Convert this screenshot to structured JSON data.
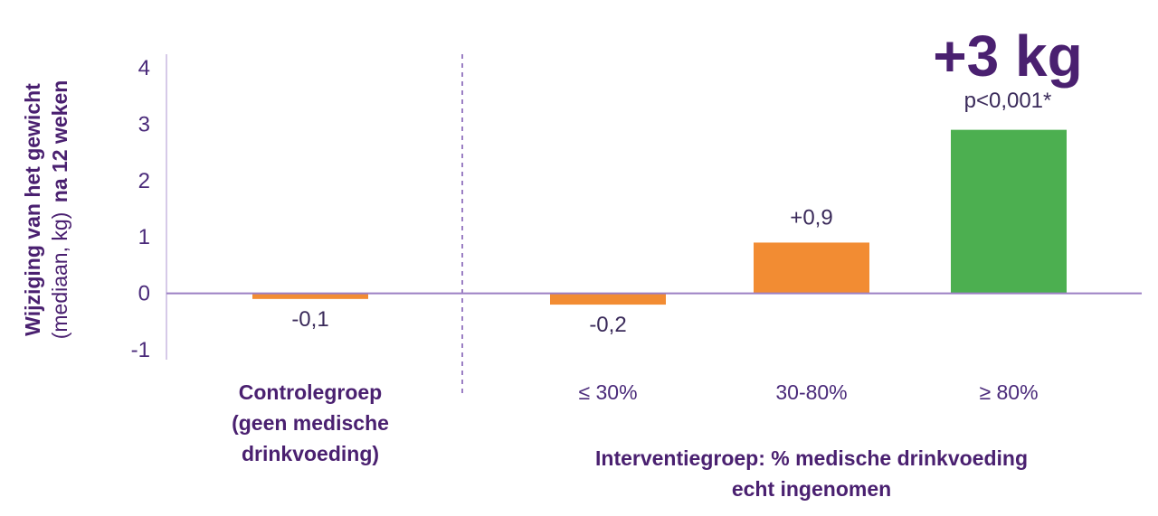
{
  "chart_data": {
    "type": "bar",
    "ylabel": {
      "line1": "Wijziging van het gewicht",
      "line2_light": "(mediaan, kg)",
      "line2_bold": "na 12 weken"
    },
    "ylim": [
      -1,
      4
    ],
    "yticks": [
      "4",
      "3",
      "2",
      "1",
      "0",
      "-1"
    ],
    "categories": [
      "Controlegroep (geen medische drinkvoeding)",
      "≤ 30%",
      "30-80%",
      "≥ 80%"
    ],
    "category_labels": [
      [
        "Controlegroep",
        "(geen medische",
        "drinkvoeding)"
      ],
      [
        "≤ 30%"
      ],
      [
        "30-80%"
      ],
      [
        "≥ 80%"
      ]
    ],
    "values": [
      -0.1,
      -0.2,
      0.9,
      2.9
    ],
    "value_labels": [
      "-0,1",
      "-0,2",
      "+0,9",
      ""
    ],
    "colors": [
      "#f28c33",
      "#f28c33",
      "#f28c33",
      "#4caf50"
    ],
    "group_label": [
      "Interventiegroep: % medische drinkvoeding",
      "echt ingenomen"
    ],
    "annotation": {
      "headline": "+3 kg",
      "pvalue": "p<0,001*"
    },
    "axis_color": "#9b7fc4",
    "text_color": "#4a2070"
  }
}
